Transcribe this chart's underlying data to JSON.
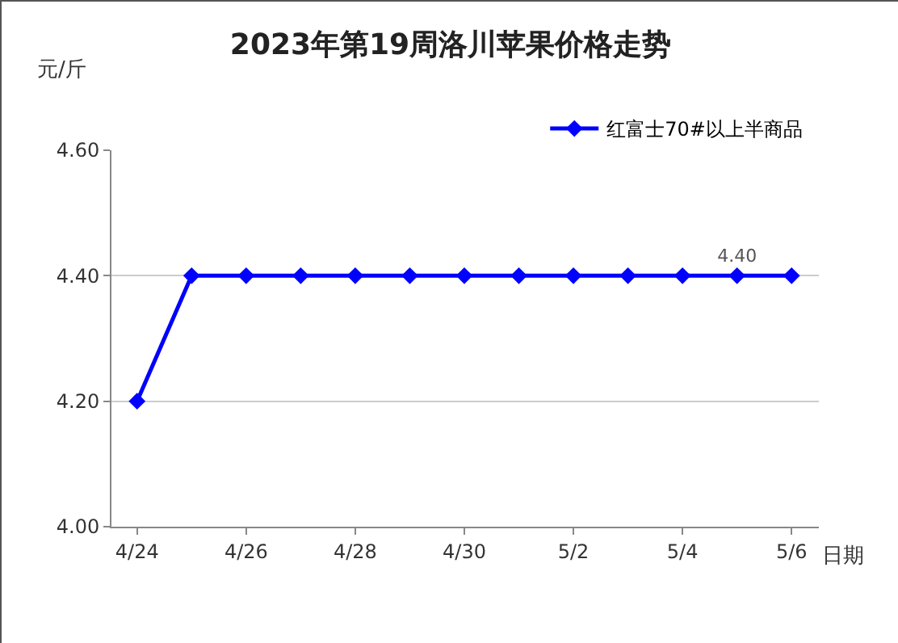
{
  "chart_data": {
    "type": "line",
    "title": "2023年第19周洛川苹果价格走势",
    "xlabel": "日期",
    "ylabel": "元/斤",
    "categories": [
      "4/24",
      null,
      "4/26",
      null,
      "4/28",
      null,
      "4/30",
      null,
      "5/2",
      null,
      "5/4",
      null,
      "5/6"
    ],
    "series": [
      {
        "name": "红富士70#以上半商品",
        "color": "#0000ff",
        "values": [
          4.2,
          4.4,
          4.4,
          4.4,
          4.4,
          4.4,
          4.4,
          4.4,
          4.4,
          4.4,
          4.4,
          4.4,
          4.4
        ],
        "value_labels": [
          null,
          null,
          null,
          null,
          null,
          null,
          null,
          null,
          null,
          null,
          null,
          "4.40",
          null
        ]
      }
    ],
    "ylim": [
      4.0,
      4.6
    ],
    "yticks": [
      {
        "value": 4.0,
        "label": "4.00"
      },
      {
        "value": 4.2,
        "label": "4.20"
      },
      {
        "value": 4.4,
        "label": "4.40"
      },
      {
        "value": 4.6,
        "label": "4.60"
      }
    ],
    "grid": "y",
    "legend": "top right",
    "marker": "diamond",
    "line_style": "solid"
  }
}
